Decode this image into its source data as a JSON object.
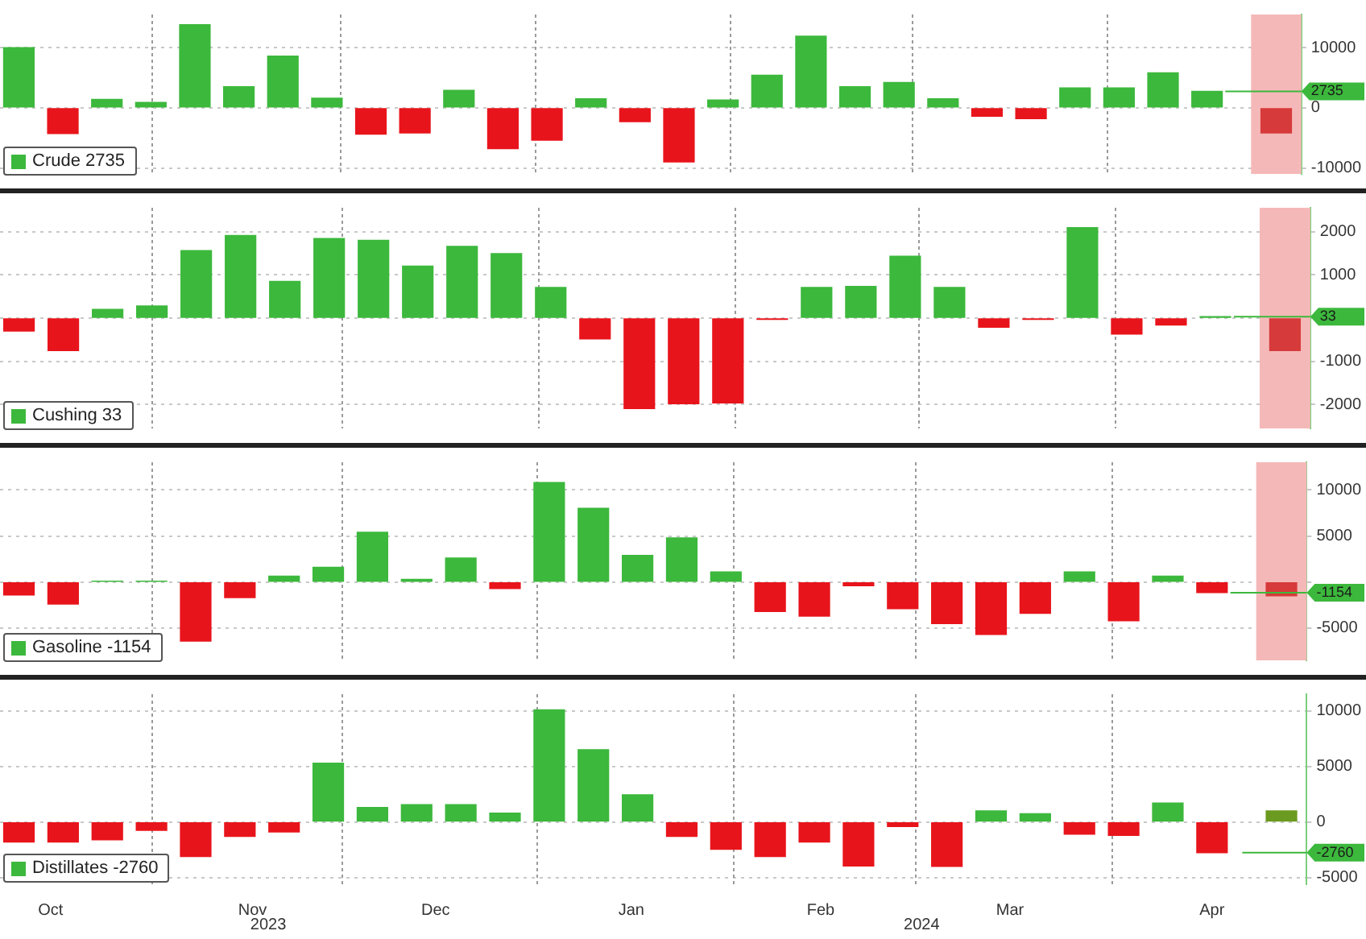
{
  "chart_data": [
    {
      "type": "bar",
      "x": [
        "2023-10-11",
        "2023-10-18",
        "2023-10-25",
        "2023-11-01",
        "2023-11-08",
        "2023-11-15",
        "2023-11-22",
        "2023-11-29",
        "2023-12-06",
        "2023-12-13",
        "2023-12-20",
        "2023-12-27",
        "2024-01-03",
        "2024-01-10",
        "2024-01-17",
        "2024-01-24",
        "2024-01-31",
        "2024-02-07",
        "2024-02-14",
        "2024-02-21",
        "2024-02-28",
        "2024-03-06",
        "2024-03-13",
        "2024-03-20",
        "2024-03-27",
        "2024-04-03",
        "2024-04-10",
        "2024-04-17",
        "2024-04-28"
      ],
      "series": [
        {
          "name": "Crude 2735",
          "color": "#3cb83c",
          "values": [
            10000,
            -4300,
            1400,
            900,
            13800,
            3500,
            8600,
            1600,
            -4400,
            -4200,
            2900,
            -6800,
            -5400,
            1500,
            -2300,
            -9000,
            1300,
            5400,
            11900,
            3500,
            4200,
            1500,
            -1400,
            -1800,
            3300,
            3300,
            5800,
            2735,
            -4200
          ],
          "colors": [
            "#3cb83c",
            "#e8141b",
            "#3cb83c",
            "#3cb83c",
            "#3cb83c",
            "#3cb83c",
            "#3cb83c",
            "#3cb83c",
            "#e8141b",
            "#e8141b",
            "#3cb83c",
            "#e8141b",
            "#e8141b",
            "#3cb83c",
            "#e8141b",
            "#e8141b",
            "#3cb83c",
            "#3cb83c",
            "#3cb83c",
            "#3cb83c",
            "#3cb83c",
            "#3cb83c",
            "#e8141b",
            "#e8141b",
            "#3cb83c",
            "#3cb83c",
            "#3cb83c",
            "#3cb83c",
            "#d63a3a"
          ]
        }
      ],
      "xlim": [
        "2023-10-08",
        "2024-05-02"
      ],
      "xticks": [
        {
          "value": "2023-11-01",
          "label": null
        },
        {
          "value": "2023-12-01",
          "label": null
        },
        {
          "value": "2024-01-01",
          "label": null
        },
        {
          "value": "2024-02-01",
          "label": null
        },
        {
          "value": "2024-03-01",
          "label": null
        },
        {
          "value": "2024-04-01",
          "label": null
        }
      ],
      "ylim": [
        -11000,
        15500
      ],
      "yticks": [
        -10000,
        0,
        10000
      ],
      "grid": true,
      "legend": "bottom left",
      "tick_labels": "y",
      "ref_lines": [
        {
          "axis": "y",
          "value": 2735,
          "label": "2735",
          "color": "#3cb83c"
        }
      ],
      "bands": [
        {
          "axis": "x",
          "from": "2024-04-24",
          "to": "2024-05-02",
          "color": "#f5b8b8"
        }
      ]
    },
    {
      "type": "bar",
      "x": [
        "2023-10-11",
        "2023-10-18",
        "2023-10-25",
        "2023-11-01",
        "2023-11-08",
        "2023-11-15",
        "2023-11-22",
        "2023-11-29",
        "2023-12-06",
        "2023-12-13",
        "2023-12-20",
        "2023-12-27",
        "2024-01-03",
        "2024-01-10",
        "2024-01-17",
        "2024-01-24",
        "2024-01-31",
        "2024-02-07",
        "2024-02-14",
        "2024-02-21",
        "2024-02-28",
        "2024-03-06",
        "2024-03-13",
        "2024-03-20",
        "2024-03-27",
        "2024-04-03",
        "2024-04-10",
        "2024-04-17",
        "2024-04-28"
      ],
      "series": [
        {
          "name": "Cushing 33",
          "color": "#3cb83c",
          "values": [
            -300,
            -750,
            200,
            280,
            1560,
            1910,
            850,
            1840,
            1800,
            1200,
            1660,
            1490,
            710,
            -480,
            -2090,
            -1980,
            -1960,
            -30,
            710,
            730,
            1430,
            710,
            -210,
            -30,
            2090,
            -370,
            -160,
            33,
            -750
          ],
          "colors": [
            "#e8141b",
            "#e8141b",
            "#3cb83c",
            "#3cb83c",
            "#3cb83c",
            "#3cb83c",
            "#3cb83c",
            "#3cb83c",
            "#3cb83c",
            "#3cb83c",
            "#3cb83c",
            "#3cb83c",
            "#3cb83c",
            "#e8141b",
            "#e8141b",
            "#e8141b",
            "#e8141b",
            "#e8141b",
            "#3cb83c",
            "#3cb83c",
            "#3cb83c",
            "#3cb83c",
            "#e8141b",
            "#e8141b",
            "#3cb83c",
            "#e8141b",
            "#e8141b",
            "#3cb83c",
            "#d63a3a"
          ]
        }
      ],
      "xlim": [
        "2023-10-08",
        "2024-05-02"
      ],
      "xticks": [
        {
          "value": "2023-11-01",
          "label": null
        },
        {
          "value": "2023-12-01",
          "label": null
        },
        {
          "value": "2024-01-01",
          "label": null
        },
        {
          "value": "2024-02-01",
          "label": null
        },
        {
          "value": "2024-03-01",
          "label": null
        },
        {
          "value": "2024-04-01",
          "label": null
        }
      ],
      "ylim": [
        -2550,
        2550
      ],
      "yticks": [
        -2000,
        -1000,
        {
          "value": 0,
          "label": null
        },
        1000,
        2000
      ],
      "grid": true,
      "legend": "bottom left",
      "tick_labels": "y",
      "ref_lines": [
        {
          "axis": "y",
          "value": 33,
          "label": "33",
          "color": "#3cb83c"
        }
      ],
      "bands": [
        {
          "axis": "x",
          "from": "2024-04-24",
          "to": "2024-05-02",
          "color": "#f5b8b8"
        }
      ]
    },
    {
      "type": "bar",
      "x": [
        "2023-10-11",
        "2023-10-18",
        "2023-10-25",
        "2023-11-01",
        "2023-11-08",
        "2023-11-15",
        "2023-11-22",
        "2023-11-29",
        "2023-12-06",
        "2023-12-13",
        "2023-12-20",
        "2023-12-27",
        "2024-01-03",
        "2024-01-10",
        "2024-01-17",
        "2024-01-24",
        "2024-01-31",
        "2024-02-07",
        "2024-02-14",
        "2024-02-21",
        "2024-02-28",
        "2024-03-06",
        "2024-03-13",
        "2024-03-20",
        "2024-03-27",
        "2024-04-03",
        "2024-04-10",
        "2024-04-17",
        "2024-04-28"
      ],
      "series": [
        {
          "name": "Gasoline -1154",
          "color": "#3cb83c",
          "values": [
            -1400,
            -2400,
            100,
            100,
            -6400,
            -1700,
            650,
            1600,
            5400,
            300,
            2600,
            -700,
            10800,
            8000,
            2900,
            4800,
            1100,
            -3200,
            -3700,
            -400,
            -2900,
            -4500,
            -5700,
            -3400,
            1100,
            -4200,
            650,
            -1154,
            -1500
          ],
          "colors": [
            "#e8141b",
            "#e8141b",
            "#3cb83c",
            "#3cb83c",
            "#e8141b",
            "#e8141b",
            "#3cb83c",
            "#3cb83c",
            "#3cb83c",
            "#3cb83c",
            "#3cb83c",
            "#e8141b",
            "#3cb83c",
            "#3cb83c",
            "#3cb83c",
            "#3cb83c",
            "#3cb83c",
            "#e8141b",
            "#e8141b",
            "#e8141b",
            "#e8141b",
            "#e8141b",
            "#e8141b",
            "#e8141b",
            "#3cb83c",
            "#e8141b",
            "#3cb83c",
            "#e8141b",
            "#d63a3a"
          ]
        }
      ],
      "xlim": [
        "2023-10-08",
        "2024-05-02"
      ],
      "xticks": [
        {
          "value": "2023-11-01",
          "label": null
        },
        {
          "value": "2023-12-01",
          "label": null
        },
        {
          "value": "2024-01-01",
          "label": null
        },
        {
          "value": "2024-02-01",
          "label": null
        },
        {
          "value": "2024-03-01",
          "label": null
        },
        {
          "value": "2024-04-01",
          "label": null
        }
      ],
      "ylim": [
        -8500,
        13000
      ],
      "yticks": [
        -5000,
        {
          "value": 0,
          "label": null
        },
        5000,
        10000
      ],
      "grid": true,
      "legend": "bottom left",
      "tick_labels": "y",
      "ref_lines": [
        {
          "axis": "y",
          "value": -1154,
          "label": "-1154",
          "color": "#3cb83c"
        }
      ],
      "bands": [
        {
          "axis": "x",
          "from": "2024-04-24",
          "to": "2024-05-02",
          "color": "#f5b8b8"
        }
      ]
    },
    {
      "type": "bar",
      "x": [
        "2023-10-11",
        "2023-10-18",
        "2023-10-25",
        "2023-11-01",
        "2023-11-08",
        "2023-11-15",
        "2023-11-22",
        "2023-11-29",
        "2023-12-06",
        "2023-12-13",
        "2023-12-20",
        "2023-12-27",
        "2024-01-03",
        "2024-01-10",
        "2024-01-17",
        "2024-01-24",
        "2024-01-31",
        "2024-02-07",
        "2024-02-14",
        "2024-02-21",
        "2024-02-28",
        "2024-03-06",
        "2024-03-13",
        "2024-03-20",
        "2024-03-27",
        "2024-04-03",
        "2024-04-10",
        "2024-04-17",
        "2024-04-28"
      ],
      "series": [
        {
          "name": "Distillates -2760",
          "color": "#3cb83c",
          "values": [
            -1800,
            -1800,
            -1600,
            -750,
            -3100,
            -1300,
            -900,
            5300,
            1300,
            1560,
            1560,
            800,
            10100,
            6500,
            2450,
            -1300,
            -2450,
            -3100,
            -1800,
            -3950,
            -400,
            -4000,
            1000,
            750,
            -1100,
            -1200,
            1700,
            -2760,
            1000
          ],
          "colors": [
            "#e8141b",
            "#e8141b",
            "#e8141b",
            "#e8141b",
            "#e8141b",
            "#e8141b",
            "#e8141b",
            "#3cb83c",
            "#3cb83c",
            "#3cb83c",
            "#3cb83c",
            "#3cb83c",
            "#3cb83c",
            "#3cb83c",
            "#3cb83c",
            "#e8141b",
            "#e8141b",
            "#e8141b",
            "#e8141b",
            "#e8141b",
            "#e8141b",
            "#e8141b",
            "#3cb83c",
            "#3cb83c",
            "#e8141b",
            "#e8141b",
            "#3cb83c",
            "#e8141b",
            "#6b9a20"
          ]
        }
      ],
      "xlim": [
        "2023-10-08",
        "2024-05-02"
      ],
      "xticks": [
        {
          "value": "2023-10-16",
          "label": "Oct"
        },
        {
          "value": "2023-11-17",
          "label": "Nov"
        },
        {
          "value": "2023-12-16",
          "label": "Dec"
        },
        {
          "value": "2024-01-16",
          "label": "Jan"
        },
        {
          "value": "2024-02-15",
          "label": "Feb"
        },
        {
          "value": "2024-03-16",
          "label": "Mar"
        },
        {
          "value": "2024-04-17",
          "label": "Apr"
        }
      ],
      "ylim": [
        -5600,
        11500
      ],
      "yticks": [
        -5000,
        0,
        5000,
        10000
      ],
      "grid": true,
      "legend": "bottom left",
      "ref_lines": [
        {
          "axis": "y",
          "value": -2760,
          "label": "-2760",
          "color": "#3cb83c"
        }
      ],
      "annotations": [
        "2023",
        "2024"
      ]
    }
  ]
}
